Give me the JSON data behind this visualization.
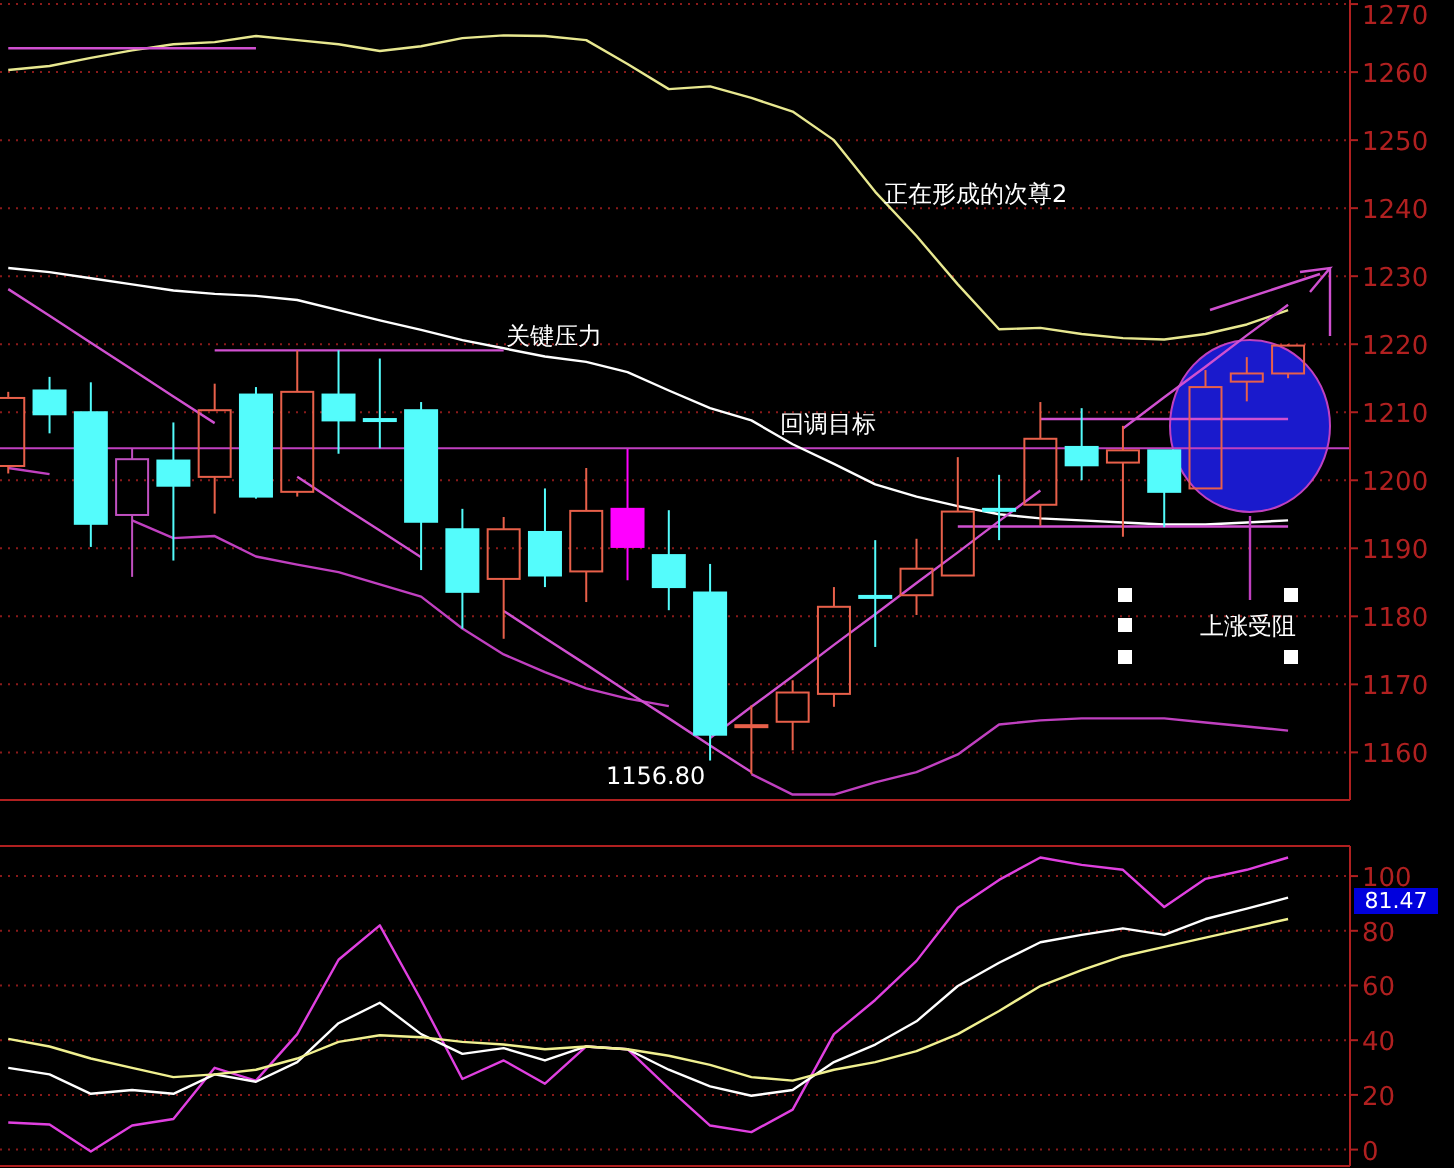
{
  "chart_data": [
    {
      "type": "candlestick",
      "categories": [
        null,
        null,
        null,
        null,
        null,
        null,
        null,
        null,
        null,
        null,
        null,
        null,
        null,
        null,
        null,
        null,
        null,
        null,
        null,
        null,
        null,
        null,
        null,
        null,
        null,
        null,
        null,
        null,
        null,
        null,
        null,
        null
      ],
      "ohlc": [
        [
          1202.1,
          1213.0,
          1201.0,
          1212.1
        ],
        [
          1213.2,
          1215.2,
          1206.9,
          1209.7
        ],
        [
          1210.0,
          1214.4,
          1190.2,
          1193.6
        ],
        [
          1194.9,
          1204.7,
          1185.8,
          1203.1
        ],
        [
          1202.9,
          1208.5,
          1188.2,
          1199.2
        ],
        [
          1200.5,
          1214.2,
          1195.1,
          1210.3
        ],
        [
          1212.6,
          1213.7,
          1197.3,
          1197.6
        ],
        [
          1198.3,
          1219.1,
          1197.6,
          1213.0
        ],
        [
          1212.6,
          1219.1,
          1203.9,
          1208.8
        ],
        [
          1209.0,
          1217.9,
          1204.7,
          1209.0
        ],
        [
          1210.3,
          1211.5,
          1186.8,
          1193.9
        ],
        [
          1192.8,
          1195.8,
          1178.2,
          1183.6
        ],
        [
          1185.5,
          1194.6,
          1176.7,
          1192.8
        ],
        [
          1192.4,
          1198.8,
          1184.3,
          1186.0
        ],
        [
          1186.6,
          1201.8,
          1182.1,
          1195.5
        ],
        [
          1195.8,
          1204.6,
          1185.3,
          1190.2
        ],
        [
          1189.0,
          1195.6,
          1180.9,
          1184.3
        ],
        [
          1183.5,
          1187.7,
          1158.8,
          1162.6
        ],
        [
          1164.0,
          1166.9,
          1156.8,
          1164.0
        ],
        [
          1164.5,
          1170.6,
          1160.3,
          1168.8
        ],
        [
          1168.6,
          1184.3,
          1166.7,
          1181.4
        ],
        [
          1183.0,
          1191.2,
          1175.5,
          1183.0
        ],
        [
          1183.1,
          1191.4,
          1180.2,
          1187.0
        ],
        [
          1186.0,
          1203.4,
          1186.0,
          1195.4
        ],
        [
          1195.8,
          1200.8,
          1191.2,
          1195.8
        ],
        [
          1196.4,
          1211.5,
          1193.3,
          1206.1
        ],
        [
          1204.9,
          1210.6,
          1200.0,
          1202.2
        ],
        [
          1202.6,
          1208.0,
          1191.7,
          1204.4
        ],
        [
          1204.4,
          1204.4,
          1193.1,
          1198.3
        ],
        [
          1198.8,
          1216.2,
          1198.8,
          1213.7
        ],
        [
          1214.5,
          1218.1,
          1211.6,
          1215.7
        ],
        [
          1215.7,
          1220.0,
          1215.0,
          1219.8
        ]
      ],
      "colors": [
        "#e8604a",
        "#54fcfc",
        "#54fcfc",
        "#c050c0",
        "#54fcfc",
        "#e8604a",
        "#54fcfc",
        "#e8604a",
        "#54fcfc",
        "#54fcfc",
        "#54fcfc",
        "#54fcfc",
        "#e8604a",
        "#54fcfc",
        "#e8604a",
        "#ff00ff",
        "#54fcfc",
        "#54fcfc",
        "#e8604a",
        "#e8604a",
        "#e8604a",
        "#54fcfc",
        "#e8604a",
        "#e8604a",
        "#54fcfc",
        "#e8604a",
        "#54fcfc",
        "#e8604a",
        "#54fcfc",
        "#e8604a",
        "#e8604a",
        "#e8604a"
      ],
      "series": [
        {
          "type": "line",
          "color": "#e8e890",
          "values": [
            1260.3,
            1260.9,
            1262.1,
            1263.2,
            1264.1,
            1264.4,
            1265.3,
            1264.7,
            1264.1,
            1263.1,
            1263.8,
            1265.0,
            1265.4,
            1265.3,
            1264.7,
            1261.2,
            1257.5,
            1257.9,
            1256.2,
            1254.2,
            1250.0,
            1242.4,
            1235.9,
            1228.8,
            1222.2,
            1222.4,
            1221.5,
            1220.9,
            1220.7,
            1221.5,
            1222.9,
            1225.0
          ]
        },
        {
          "type": "line",
          "color": "#ffffff",
          "values": [
            1231.2,
            1230.6,
            1229.7,
            1228.8,
            1227.9,
            1227.4,
            1227.1,
            1226.5,
            1225.0,
            1223.5,
            1222.1,
            1220.6,
            1219.4,
            1218.2,
            1217.4,
            1215.9,
            1213.2,
            1210.6,
            1208.8,
            1205.3,
            1202.4,
            1199.4,
            1197.6,
            1196.2,
            1195.0,
            1194.4,
            1194.1,
            1193.8,
            1193.5,
            1193.5,
            1193.8,
            1194.1
          ]
        },
        {
          "type": "line",
          "color": "#c040c0",
          "values": [
            1201.8,
            1200.9,
            null,
            1194.1,
            1191.5,
            1191.8,
            1188.8,
            1187.6,
            1186.5,
            1184.7,
            1182.9,
            1178.2,
            1174.4,
            1171.8,
            1169.4,
            1167.9,
            1166.8,
            null,
            1156.8,
            1153.8,
            1153.8,
            1155.6,
            1157.1,
            1159.7,
            1164.1,
            1164.7,
            1165.0,
            1165.0,
            1165.0,
            1164.4,
            1163.8,
            1163.2
          ]
        },
        {
          "type": "line",
          "color": "#d050d0",
          "values": [
            1228.1,
            1224.2,
            1220.2,
            1216.3,
            1212.3,
            1208.4,
            null,
            1200.5,
            1196.5,
            1192.6,
            1188.7,
            null,
            1180.8,
            1176.8,
            1172.9,
            1168.9,
            1165.0,
            1161.0,
            1157.1,
            null,
            null,
            null,
            null,
            null,
            null,
            null,
            null,
            null,
            null,
            null,
            null,
            null
          ]
        },
        {
          "type": "line",
          "color": "#d050d0",
          "values": [
            null,
            null,
            null,
            null,
            null,
            null,
            null,
            null,
            null,
            null,
            null,
            null,
            null,
            null,
            null,
            null,
            null,
            1162.1,
            1166.7,
            1171.2,
            1175.8,
            1180.3,
            1184.9,
            1189.4,
            1194.0,
            1198.5,
            null,
            1207.6,
            1212.2,
            1216.7,
            1221.3,
            1225.8
          ]
        },
        {
          "type": "line",
          "color": "#d050d0",
          "values": [
            null,
            null,
            null,
            null,
            null,
            1219.1,
            1219.1,
            1219.1,
            1219.1,
            1219.1,
            1219.1,
            1219.1,
            1219.1,
            null,
            null,
            null,
            null,
            null,
            null,
            null,
            null,
            null,
            null,
            null,
            null,
            null,
            null,
            null,
            null,
            null,
            null,
            null
          ]
        },
        {
          "type": "line",
          "color": "#d050d0",
          "values": [
            1263.5,
            1263.5,
            1263.5,
            1263.5,
            1263.5,
            1263.5,
            1263.5,
            null,
            null,
            null,
            null,
            null,
            null,
            null,
            null,
            null,
            null,
            null,
            null,
            null,
            null,
            null,
            null,
            null,
            null,
            null,
            null,
            null,
            null,
            null,
            null,
            null
          ]
        },
        {
          "type": "line",
          "color": "#d050d0",
          "values": [
            null,
            null,
            null,
            null,
            null,
            null,
            null,
            null,
            null,
            null,
            null,
            null,
            null,
            null,
            null,
            null,
            null,
            null,
            null,
            null,
            null,
            null,
            null,
            null,
            null,
            1209.0,
            1209.0,
            1209.0,
            1209.0,
            1209.0,
            1209.0,
            1209.0
          ]
        },
        {
          "type": "line",
          "color": "#d050d0",
          "values": [
            null,
            null,
            null,
            null,
            null,
            null,
            null,
            null,
            null,
            null,
            null,
            null,
            null,
            null,
            null,
            null,
            null,
            null,
            null,
            null,
            null,
            null,
            null,
            1193.2,
            1193.2,
            1193.2,
            1193.2,
            1193.2,
            1193.2,
            1193.2,
            1193.2,
            1193.2
          ]
        }
      ],
      "ylim": [
        1153,
        1270.6
      ],
      "yticks": [
        1160,
        1170,
        1180,
        1190,
        1200,
        1210,
        1220,
        1230,
        1240,
        1250,
        1260,
        1270
      ],
      "grid": "y",
      "tick_labels": "y",
      "ref_lines": [
        {
          "axis": "y",
          "value": 1204.7,
          "label": "回调目标",
          "color": "#c040c0"
        }
      ],
      "annotations": [
        "关键压力",
        "正在形成的次尊2",
        "上涨受阻",
        "1156.80"
      ]
    },
    {
      "type": "line",
      "categories": [
        null,
        null,
        null,
        null,
        null,
        null,
        null,
        null,
        null,
        null,
        null,
        null,
        null,
        null,
        null,
        null,
        null,
        null,
        null,
        null,
        null,
        null,
        null,
        null,
        null,
        null,
        null,
        null,
        null,
        null,
        null,
        null
      ],
      "series": [
        {
          "color": "#e040e0",
          "values": [
            9.9,
            9.2,
            -0.7,
            8.8,
            11.2,
            29.9,
            25.2,
            42.2,
            69.4,
            82.0,
            54.7,
            25.8,
            32.6,
            24.1,
            37.7,
            36.7,
            22.4,
            8.8,
            6.4,
            14.6,
            42.2,
            54.7,
            69.0,
            88.4,
            98.6,
            106.8,
            104.1,
            102.3,
            88.7,
            99.0,
            102.3,
            106.8
          ]
        },
        {
          "color": "#ffffff",
          "values": [
            29.9,
            27.5,
            20.4,
            21.8,
            20.4,
            27.5,
            24.8,
            32.0,
            46.2,
            53.7,
            42.2,
            35.0,
            37.1,
            32.6,
            37.7,
            36.7,
            29.2,
            23.1,
            19.7,
            21.8,
            32.0,
            38.4,
            46.9,
            59.8,
            68.3,
            75.8,
            78.5,
            80.9,
            78.5,
            84.3,
            88.1,
            92.1
          ]
        },
        {
          "color": "#f0f090",
          "values": [
            40.5,
            37.7,
            33.3,
            29.9,
            26.5,
            27.5,
            29.2,
            33.3,
            39.4,
            41.8,
            41.1,
            39.4,
            38.4,
            36.7,
            37.7,
            36.7,
            34.3,
            31.0,
            26.5,
            25.2,
            29.2,
            32.0,
            36.0,
            42.2,
            50.7,
            59.8,
            65.6,
            70.7,
            74.1,
            77.5,
            80.9,
            84.3
          ]
        }
      ],
      "ylim": [
        -6,
        111
      ],
      "yticks": [
        0,
        20,
        40,
        60,
        80,
        100
      ],
      "grid": "y",
      "tick_labels": "y",
      "annotations": [
        "81.47"
      ]
    }
  ]
}
